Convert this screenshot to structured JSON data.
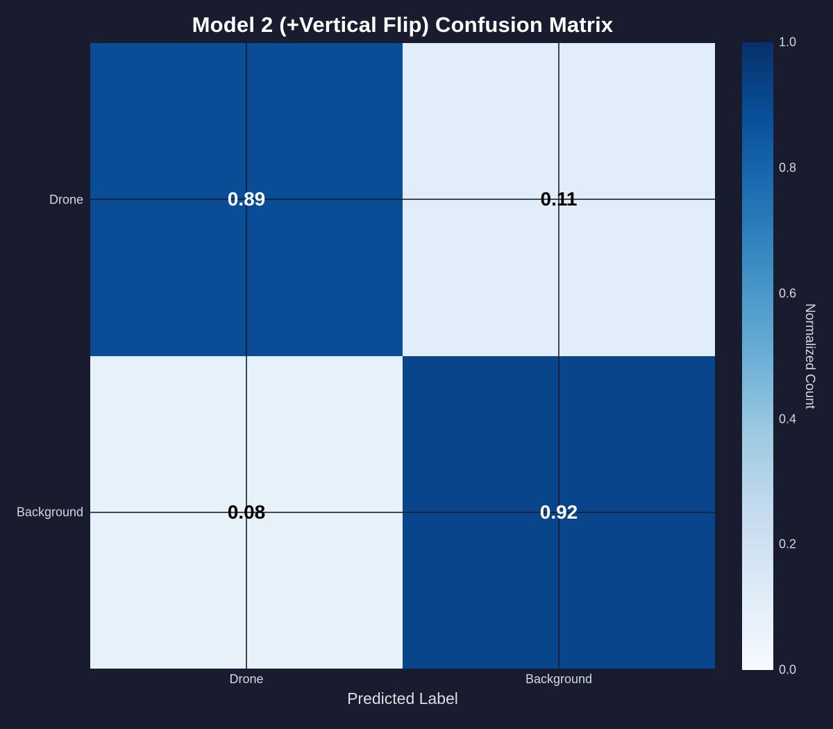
{
  "chart_data": {
    "type": "heatmap",
    "title": "Model 2 (+Vertical Flip) Confusion Matrix",
    "xlabel": "Predicted Label",
    "ylabel": "",
    "x_categories": [
      "Drone",
      "Background"
    ],
    "y_categories": [
      "Drone",
      "Background"
    ],
    "values": [
      [
        0.89,
        0.11
      ],
      [
        0.08,
        0.92
      ]
    ],
    "cells": [
      {
        "row": "Drone",
        "col": "Drone",
        "label": "0.89",
        "bg": "#084d96",
        "text": "#ffffff"
      },
      {
        "row": "Drone",
        "col": "Background",
        "label": "0.11",
        "bg": "#e1edf8",
        "text": "#000000"
      },
      {
        "row": "Background",
        "col": "Drone",
        "label": "0.08",
        "bg": "#e7f1fa",
        "text": "#000000"
      },
      {
        "row": "Background",
        "col": "Background",
        "label": "0.92",
        "bg": "#08458a",
        "text": "#ffffff"
      }
    ],
    "colorbar": {
      "label": "Normalized Count",
      "ticks": [
        "1.0",
        "0.8",
        "0.6",
        "0.4",
        "0.2",
        "0.0"
      ],
      "min": 0.0,
      "max": 1.0
    },
    "colormap": {
      "name": "Blues",
      "stops": [
        "#f7fbff",
        "#deebf7",
        "#c6dbef",
        "#9ecae1",
        "#6baed6",
        "#4292c6",
        "#2171b5",
        "#08519c",
        "#08306b"
      ]
    },
    "grid": true,
    "layout": {
      "axis_range": "2x2 categorical",
      "legend_position": "colorbar-right"
    }
  },
  "colors": {
    "background": "#191b2e",
    "title_text": "#ffffff",
    "tick_text": "#d6d7de",
    "grid_line": "rgba(24,27,46,0.8)"
  }
}
